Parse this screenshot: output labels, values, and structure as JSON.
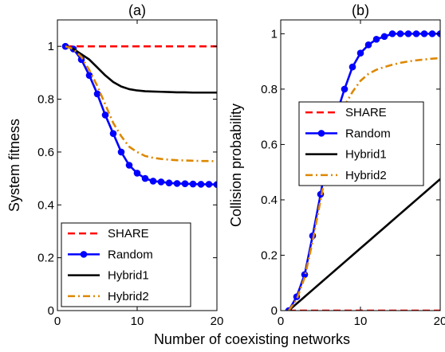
{
  "figure": {
    "shared_xlabel": "Number of coexisting networks"
  },
  "chart_data": [
    {
      "type": "line",
      "title": "(a)",
      "xlabel": "",
      "ylabel": "System fitness",
      "xlim": [
        0,
        20
      ],
      "ylim": [
        0,
        1.1
      ],
      "xticks": [
        0,
        10,
        20
      ],
      "yticks": [
        0,
        0.2,
        0.4,
        0.6,
        0.8,
        1
      ],
      "ytick_labels": [
        "0",
        "0.2",
        "0.4",
        "0.6",
        "0.8",
        "1"
      ],
      "grid": false,
      "legend_position": "bottom-left",
      "x": [
        1,
        2,
        3,
        4,
        5,
        6,
        7,
        8,
        9,
        10,
        11,
        12,
        13,
        14,
        15,
        16,
        17,
        18,
        19,
        20
      ],
      "series": [
        {
          "name": "SHARE",
          "color": "#ff0000",
          "dash": "dashed",
          "marker": false,
          "values": [
            1,
            1,
            1,
            1,
            1,
            1,
            1,
            1,
            1,
            1,
            1,
            1,
            1,
            1,
            1,
            1,
            1,
            1,
            1,
            1
          ]
        },
        {
          "name": "Random",
          "color": "#0000ff",
          "dash": "solid",
          "marker": true,
          "values": [
            1,
            0.99,
            0.95,
            0.89,
            0.82,
            0.74,
            0.67,
            0.6,
            0.55,
            0.52,
            0.5,
            0.49,
            0.487,
            0.483,
            0.481,
            0.48,
            0.479,
            0.478,
            0.478,
            0.477
          ]
        },
        {
          "name": "Hybrid1",
          "color": "#000000",
          "dash": "solid",
          "marker": false,
          "values": [
            1,
            0.99,
            0.97,
            0.95,
            0.92,
            0.89,
            0.865,
            0.848,
            0.838,
            0.833,
            0.83,
            0.829,
            0.828,
            0.827,
            0.826,
            0.826,
            0.825,
            0.825,
            0.825,
            0.825
          ]
        },
        {
          "name": "Hybrid2",
          "color": "#dd8800",
          "dash": "dashdot",
          "marker": false,
          "values": [
            1,
            0.99,
            0.96,
            0.91,
            0.85,
            0.78,
            0.71,
            0.66,
            0.62,
            0.6,
            0.585,
            0.578,
            0.574,
            0.571,
            0.569,
            0.568,
            0.567,
            0.566,
            0.566,
            0.565
          ]
        }
      ]
    },
    {
      "type": "line",
      "title": "(b)",
      "xlabel": "",
      "ylabel": "Collision probability",
      "xlim": [
        0,
        20
      ],
      "ylim": [
        0,
        1.05
      ],
      "xticks": [
        0,
        10,
        20
      ],
      "yticks": [
        0,
        0.2,
        0.4,
        0.6,
        0.8,
        1
      ],
      "ytick_labels": [
        "0",
        "0.2",
        "0.4",
        "0.6",
        "0.8",
        "1"
      ],
      "grid": false,
      "legend_position": "top-right",
      "x": [
        1,
        2,
        3,
        4,
        5,
        6,
        7,
        8,
        9,
        10,
        11,
        12,
        13,
        14,
        15,
        16,
        17,
        18,
        19,
        20
      ],
      "series": [
        {
          "name": "SHARE",
          "color": "#ff0000",
          "dash": "dashed",
          "marker": false,
          "values": [
            0,
            0,
            0,
            0,
            0,
            0,
            0,
            0,
            0,
            0,
            0,
            0,
            0,
            0,
            0,
            0,
            0,
            0,
            0,
            0
          ]
        },
        {
          "name": "Random",
          "color": "#0000ff",
          "dash": "solid",
          "marker": true,
          "values": [
            0,
            0.05,
            0.13,
            0.27,
            0.42,
            0.58,
            0.71,
            0.8,
            0.88,
            0.93,
            0.96,
            0.98,
            0.99,
            1,
            1,
            1,
            1,
            1,
            1,
            1
          ]
        },
        {
          "name": "Hybrid1",
          "color": "#000000",
          "dash": "solid",
          "marker": false,
          "values": [
            0,
            0.025,
            0.05,
            0.075,
            0.1,
            0.125,
            0.15,
            0.175,
            0.2,
            0.225,
            0.25,
            0.275,
            0.3,
            0.325,
            0.35,
            0.375,
            0.4,
            0.425,
            0.45,
            0.475
          ]
        },
        {
          "name": "Hybrid2",
          "color": "#dd8800",
          "dash": "dashdot",
          "marker": false,
          "values": [
            0,
            0.04,
            0.12,
            0.25,
            0.4,
            0.55,
            0.66,
            0.74,
            0.79,
            0.83,
            0.855,
            0.87,
            0.88,
            0.888,
            0.895,
            0.9,
            0.904,
            0.907,
            0.91,
            0.912
          ]
        }
      ]
    }
  ]
}
